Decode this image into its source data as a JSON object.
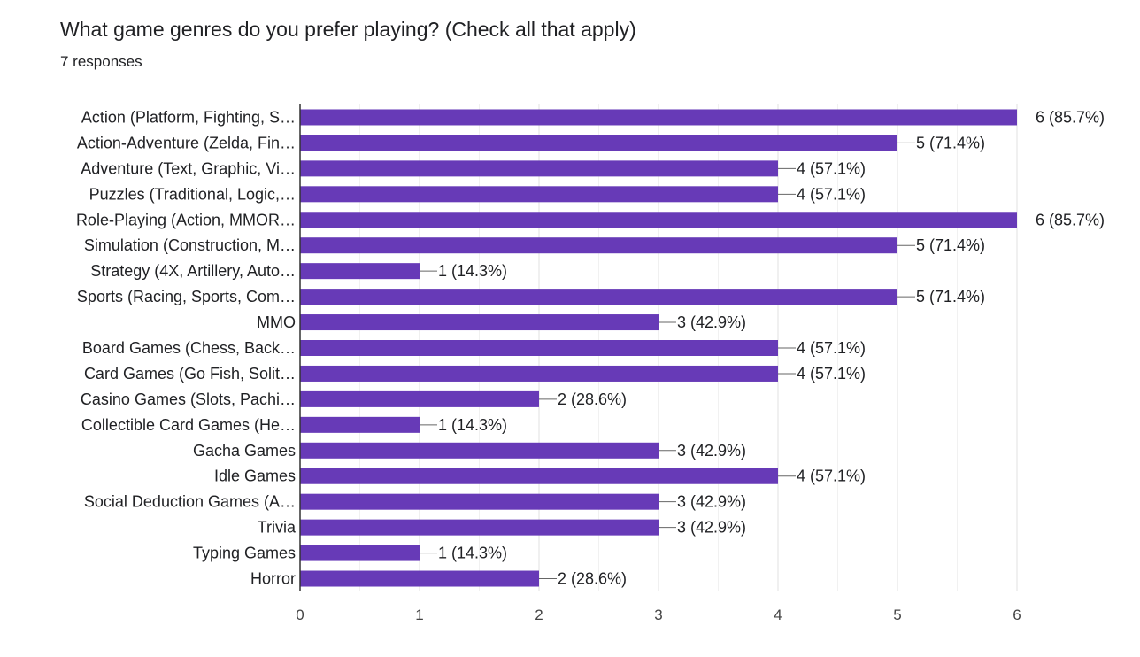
{
  "question": {
    "title": "What game genres do you prefer playing? (Check all that apply)",
    "responses_label": "7 responses"
  },
  "colors": {
    "bar": "#673ab7",
    "grid": "#e6e6e6",
    "axis": "#333333",
    "text": "#202124",
    "leader": "#666666"
  },
  "chart_data": {
    "type": "bar",
    "orientation": "horizontal",
    "categories": [
      "Action (Platform, Fighting, S…",
      "Action-Adventure (Zelda, Fin…",
      "Adventure (Text, Graphic, Vi…",
      "Puzzles (Traditional, Logic,…",
      "Role-Playing (Action, MMOR…",
      "Simulation (Construction, M…",
      "Strategy (4X, Artillery, Auto…",
      "Sports (Racing, Sports, Com…",
      "MMO",
      "Board Games (Chess, Back…",
      "Card Games (Go Fish, Solit…",
      "Casino Games (Slots, Pachi…",
      "Collectible Card Games (He…",
      "Gacha Games",
      "Idle Games",
      "Social Deduction Games (A…",
      "Trivia",
      "Typing Games",
      "Horror"
    ],
    "values": [
      6,
      5,
      4,
      4,
      6,
      5,
      1,
      5,
      3,
      4,
      4,
      2,
      1,
      3,
      4,
      3,
      3,
      1,
      2
    ],
    "data_labels": [
      "6 (85.7%)",
      "5 (71.4%)",
      "4 (57.1%)",
      "4 (57.1%)",
      "6 (85.7%)",
      "5 (71.4%)",
      "1 (14.3%)",
      "5 (71.4%)",
      "3 (42.9%)",
      "4 (57.1%)",
      "4 (57.1%)",
      "2 (28.6%)",
      "1 (14.3%)",
      "3 (42.9%)",
      "4 (57.1%)",
      "3 (42.9%)",
      "3 (42.9%)",
      "1 (14.3%)",
      "2 (28.6%)"
    ],
    "xlim": [
      0,
      6
    ],
    "xticks": [
      "0",
      "1",
      "2",
      "3",
      "4",
      "5",
      "6"
    ],
    "grid": true,
    "title": "",
    "xlabel": "",
    "ylabel": ""
  }
}
